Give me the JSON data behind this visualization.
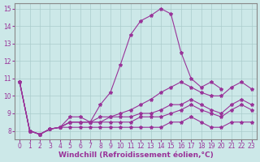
{
  "background_color": "#cce8e8",
  "grid_color": "#aacccc",
  "line_color": "#993399",
  "marker": "*",
  "xlabel": "Windchill (Refroidissement éolien,°C)",
  "xlabel_fontsize": 6.5,
  "tick_fontsize": 5.5,
  "ylim": [
    7.5,
    15.3
  ],
  "xlim": [
    -0.5,
    23.5
  ],
  "lines": [
    {
      "x": [
        0,
        1,
        2,
        3,
        4,
        5,
        6,
        7,
        8,
        9,
        10,
        11,
        12,
        13,
        14,
        15,
        16,
        17,
        18,
        19,
        20,
        21,
        22,
        23
      ],
      "y": [
        10.8,
        8.0,
        7.8,
        8.1,
        8.2,
        8.8,
        8.8,
        8.5,
        9.5,
        10.2,
        11.8,
        13.5,
        14.3,
        14.6,
        15.0,
        14.7,
        12.5,
        11.0,
        10.5,
        10.8,
        10.4,
        null,
        null,
        null
      ]
    },
    {
      "x": [
        0,
        1,
        2,
        3,
        4,
        5,
        6,
        7,
        8,
        9,
        10,
        11,
        12,
        13,
        14,
        15,
        16,
        17,
        18,
        19,
        20,
        21,
        22,
        23
      ],
      "y": [
        10.8,
        8.0,
        7.8,
        8.1,
        8.2,
        8.5,
        8.5,
        8.5,
        8.8,
        8.8,
        9.0,
        9.2,
        9.5,
        9.8,
        10.2,
        10.5,
        10.8,
        10.5,
        10.2,
        10.0,
        10.0,
        10.5,
        10.8,
        10.4
      ]
    },
    {
      "x": [
        0,
        1,
        2,
        3,
        4,
        5,
        6,
        7,
        8,
        9,
        10,
        11,
        12,
        13,
        14,
        15,
        16,
        17,
        18,
        19,
        20,
        21,
        22,
        23
      ],
      "y": [
        10.8,
        8.0,
        7.8,
        8.1,
        8.2,
        8.5,
        8.5,
        8.5,
        8.5,
        8.8,
        8.8,
        8.8,
        9.0,
        9.0,
        9.2,
        9.5,
        9.5,
        9.8,
        9.5,
        9.2,
        9.0,
        9.5,
        9.8,
        9.5
      ]
    },
    {
      "x": [
        0,
        1,
        2,
        3,
        4,
        5,
        6,
        7,
        8,
        9,
        10,
        11,
        12,
        13,
        14,
        15,
        16,
        17,
        18,
        19,
        20,
        21,
        22,
        23
      ],
      "y": [
        10.8,
        8.0,
        7.8,
        8.1,
        8.2,
        8.5,
        8.5,
        8.5,
        8.5,
        8.5,
        8.5,
        8.5,
        8.8,
        8.8,
        8.8,
        9.0,
        9.2,
        9.5,
        9.2,
        9.0,
        8.8,
        9.2,
        9.5,
        9.2
      ]
    },
    {
      "x": [
        0,
        1,
        2,
        3,
        4,
        5,
        6,
        7,
        8,
        9,
        10,
        11,
        12,
        13,
        14,
        15,
        16,
        17,
        18,
        19,
        20,
        21,
        22,
        23
      ],
      "y": [
        10.8,
        8.0,
        7.8,
        8.1,
        8.2,
        8.2,
        8.2,
        8.2,
        8.2,
        8.2,
        8.2,
        8.2,
        8.2,
        8.2,
        8.2,
        8.5,
        8.5,
        8.8,
        8.5,
        8.2,
        8.2,
        8.5,
        8.5,
        8.5
      ]
    }
  ]
}
